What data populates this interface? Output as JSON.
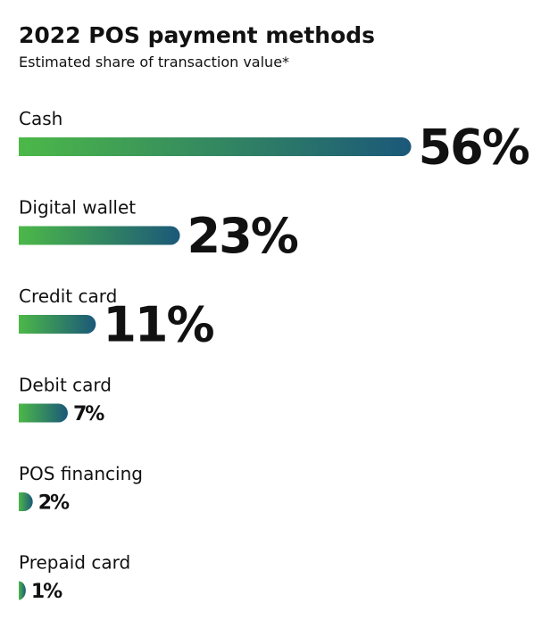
{
  "chart_data": {
    "type": "bar",
    "orientation": "horizontal",
    "title": "2022 POS payment methods",
    "subtitle": "Estimated share of transaction value*",
    "categories": [
      "Cash",
      "Digital wallet",
      "Credit card",
      "Debit card",
      "POS financing",
      "Prepaid card"
    ],
    "values": [
      56,
      23,
      11,
      7,
      2,
      1
    ],
    "value_labels": [
      "56%",
      "23%",
      "11%",
      "7%",
      "2%",
      "1%"
    ],
    "color": [
      "#4cb848",
      "#1b5879"
    ]
  }
}
